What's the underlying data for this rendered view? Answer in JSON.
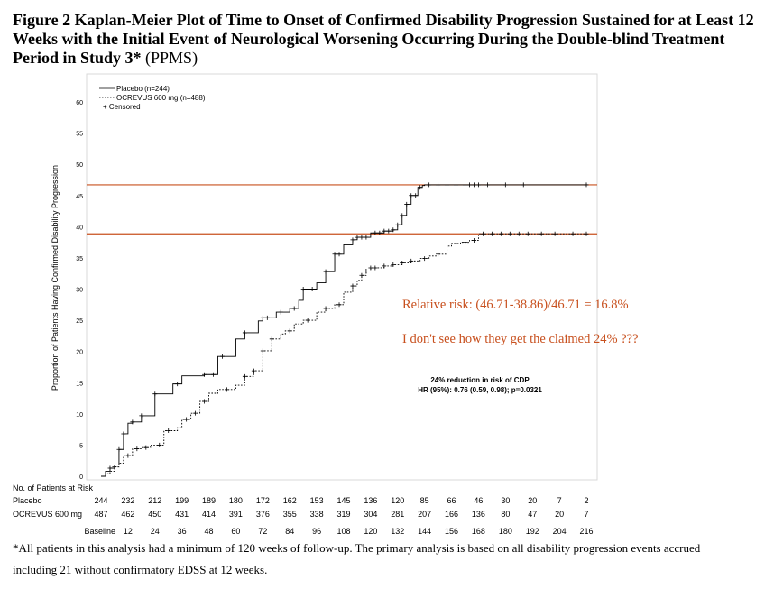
{
  "title_bold": "Figure 2 Kaplan-Meier Plot of Time to Onset of Confirmed Disability Progression Sustained for at Least 12 Weeks with the Initial Event of Neurological Worsening Occurring During the Double-blind Treatment Period in Study 3*",
  "title_suffix": " (PPMS)",
  "footnote_line1": "*All patients in this analysis had a minimum of 120 weeks of follow-up. The primary analysis is based on all disability progression events accrued",
  "footnote_line2": "including 21 without confirmatory EDSS at 12 weeks.",
  "colors": {
    "annotation": "#c8501e",
    "curve": "#000000",
    "frame": "#d9d9d9"
  },
  "chart_data": {
    "type": "line",
    "ylabel": "Proportion of Patients Having Confirmed Disability Progression",
    "ylim": [
      0,
      60
    ],
    "xlim": [
      0,
      216
    ],
    "yticks": [
      0,
      5,
      10,
      15,
      20,
      25,
      30,
      35,
      40,
      45,
      50,
      55,
      60
    ],
    "xticks": [
      0,
      12,
      24,
      36,
      48,
      60,
      72,
      84,
      96,
      108,
      120,
      132,
      144,
      156,
      168,
      180,
      192,
      204,
      216
    ],
    "xtick_labels": [
      "Baseline",
      "12",
      "24",
      "36",
      "48",
      "60",
      "72",
      "84",
      "96",
      "108",
      "120",
      "132",
      "144",
      "156",
      "168",
      "180",
      "192",
      "204",
      "216"
    ],
    "legend": {
      "placement": "top-left",
      "censored_label": "+   Censored"
    },
    "series": [
      {
        "name": "Placebo (n=244)",
        "style": "solid",
        "x": [
          0,
          2,
          4,
          6,
          8,
          10,
          12,
          14,
          18,
          24,
          32,
          36,
          46,
          52,
          60,
          64,
          70,
          72,
          78,
          84,
          88,
          90,
          96,
          100,
          104,
          108,
          112,
          114,
          120,
          126,
          130,
          132,
          134,
          136,
          138,
          141,
          143,
          144,
          216
        ],
        "y": [
          0,
          0.8,
          1.3,
          1.8,
          4.3,
          6.8,
          8.5,
          8.7,
          9.7,
          13.2,
          14.8,
          16.1,
          16.3,
          19.2,
          22.0,
          23.0,
          24.9,
          25.4,
          26.3,
          26.9,
          28.2,
          30.0,
          31.0,
          32.8,
          35.6,
          37.1,
          37.9,
          38.3,
          39.0,
          39.3,
          39.5,
          40.3,
          41.8,
          43.6,
          45.0,
          46.3,
          46.6,
          46.71,
          46.71
        ],
        "censored_x": [
          4,
          8,
          10,
          14,
          18,
          24,
          34,
          46,
          50,
          54,
          64,
          72,
          74,
          80,
          86,
          90,
          94,
          100,
          104,
          106,
          112,
          114,
          116,
          118,
          122,
          124,
          126,
          128,
          130,
          132,
          134,
          136,
          138,
          140,
          142,
          146,
          150,
          154,
          158,
          162,
          164,
          166,
          168,
          172,
          180,
          188,
          216
        ]
      },
      {
        "name": "OCREVUS 600 mg (n=488)",
        "style": "dotted",
        "x": [
          0,
          2,
          4,
          6,
          8,
          10,
          14,
          18,
          22,
          28,
          34,
          36,
          40,
          44,
          48,
          52,
          60,
          64,
          68,
          72,
          76,
          80,
          82,
          86,
          90,
          96,
          100,
          104,
          108,
          112,
          114,
          116,
          118,
          120,
          126,
          130,
          134,
          138,
          142,
          146,
          150,
          154,
          156,
          160,
          164,
          168,
          216
        ],
        "y": [
          0,
          0.4,
          0.8,
          1.5,
          2.1,
          3.3,
          4.4,
          4.6,
          5.0,
          7.3,
          7.8,
          9.1,
          10.1,
          12.0,
          13.3,
          13.9,
          14.6,
          16.0,
          16.9,
          20.1,
          22.0,
          22.8,
          23.3,
          24.4,
          25.0,
          26.3,
          26.9,
          27.5,
          29.5,
          30.5,
          31.4,
          32.2,
          32.9,
          33.4,
          33.7,
          33.9,
          34.2,
          34.5,
          34.9,
          35.3,
          35.6,
          36.9,
          37.3,
          37.5,
          37.8,
          38.86,
          38.86
        ],
        "censored_x": [
          6,
          12,
          16,
          20,
          26,
          30,
          38,
          42,
          46,
          56,
          64,
          68,
          72,
          76,
          84,
          92,
          100,
          106,
          112,
          116,
          118,
          120,
          122,
          126,
          130,
          134,
          138,
          144,
          150,
          158,
          162,
          166,
          170,
          174,
          178,
          182,
          186,
          190,
          196,
          202,
          210,
          216
        ]
      }
    ],
    "reference_lines": [
      46.71,
      38.86
    ],
    "annotations": {
      "relative_risk": "Relative risk: (46.71-38.86)/46.71 = 16.8%",
      "question": "I don't see how they get the claimed 24% ???",
      "reduction": "24% reduction in risk of CDP",
      "hr": "HR (95%): 0.76 (0.59, 0.98); p=0.0321"
    },
    "risk_table": {
      "header": "No. of Patients at Risk",
      "rows": [
        {
          "label": "Placebo",
          "values": [
            "244",
            "232",
            "212",
            "199",
            "189",
            "180",
            "172",
            "162",
            "153",
            "145",
            "136",
            "120",
            "85",
            "66",
            "46",
            "30",
            "20",
            "7",
            "2"
          ]
        },
        {
          "label": "OCREVUS 600 mg",
          "values": [
            "487",
            "462",
            "450",
            "431",
            "414",
            "391",
            "376",
            "355",
            "338",
            "319",
            "304",
            "281",
            "207",
            "166",
            "136",
            "80",
            "47",
            "20",
            "7"
          ]
        }
      ]
    }
  }
}
